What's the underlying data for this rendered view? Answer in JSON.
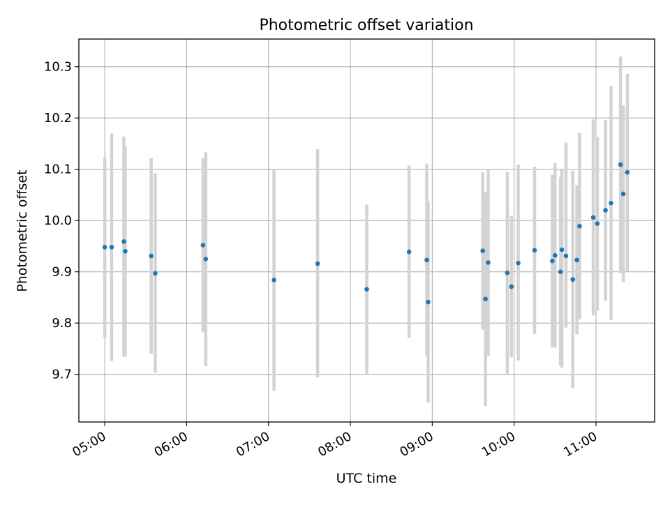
{
  "chart_data": {
    "type": "scatter",
    "title": "Photometric offset variation",
    "xlabel": "UTC time",
    "ylabel": "Photometric offset",
    "x_ticks": [
      "05:00",
      "06:00",
      "07:00",
      "08:00",
      "09:00",
      "10:00",
      "11:00"
    ],
    "y_ticks": [
      "9.7",
      "9.8",
      "9.9",
      "10.0",
      "10.1",
      "10.2",
      "10.3"
    ],
    "xlim": [
      "04:41",
      "11:43"
    ],
    "ylim": [
      9.607,
      10.354
    ],
    "grid": true,
    "marker_color": "#1f77b4",
    "errorbar_color": "#d3d3d3",
    "points": [
      {
        "t": "05:00",
        "y": 9.948,
        "lo": 9.772,
        "hi": 10.124
      },
      {
        "t": "05:05",
        "y": 9.948,
        "lo": 9.726,
        "hi": 10.17
      },
      {
        "t": "05:14",
        "y": 9.959,
        "lo": 9.734,
        "hi": 10.164
      },
      {
        "t": "05:15",
        "y": 9.94,
        "lo": 9.734,
        "hi": 10.145
      },
      {
        "t": "05:34",
        "y": 9.931,
        "lo": 9.74,
        "hi": 10.122
      },
      {
        "t": "05:37",
        "y": 9.897,
        "lo": 9.703,
        "hi": 10.092
      },
      {
        "t": "06:12",
        "y": 9.952,
        "lo": 9.782,
        "hi": 10.122
      },
      {
        "t": "06:14",
        "y": 9.925,
        "lo": 9.716,
        "hi": 10.134
      },
      {
        "t": "07:04",
        "y": 9.884,
        "lo": 9.668,
        "hi": 10.1
      },
      {
        "t": "07:36",
        "y": 9.916,
        "lo": 9.694,
        "hi": 10.139
      },
      {
        "t": "08:12",
        "y": 9.866,
        "lo": 9.7,
        "hi": 10.031
      },
      {
        "t": "08:43",
        "y": 9.939,
        "lo": 9.771,
        "hi": 10.107
      },
      {
        "t": "08:56",
        "y": 9.923,
        "lo": 9.735,
        "hi": 10.111
      },
      {
        "t": "08:57",
        "y": 9.841,
        "lo": 9.645,
        "hi": 10.038
      },
      {
        "t": "09:37",
        "y": 9.941,
        "lo": 9.787,
        "hi": 10.095
      },
      {
        "t": "09:39",
        "y": 9.847,
        "lo": 9.638,
        "hi": 10.055
      },
      {
        "t": "09:41",
        "y": 9.918,
        "lo": 9.736,
        "hi": 10.101
      },
      {
        "t": "09:55",
        "y": 9.898,
        "lo": 9.7,
        "hi": 10.095
      },
      {
        "t": "09:58",
        "y": 9.871,
        "lo": 9.733,
        "hi": 10.009
      },
      {
        "t": "10:03",
        "y": 9.917,
        "lo": 9.727,
        "hi": 10.109
      },
      {
        "t": "10:15",
        "y": 9.942,
        "lo": 9.779,
        "hi": 10.105
      },
      {
        "t": "10:28",
        "y": 9.921,
        "lo": 9.752,
        "hi": 10.089
      },
      {
        "t": "10:30",
        "y": 9.932,
        "lo": 9.752,
        "hi": 10.112
      },
      {
        "t": "10:34",
        "y": 9.9,
        "lo": 9.717,
        "hi": 10.085
      },
      {
        "t": "10:35",
        "y": 9.943,
        "lo": 9.713,
        "hi": 10.1
      },
      {
        "t": "10:38",
        "y": 9.931,
        "lo": 9.791,
        "hi": 10.152
      },
      {
        "t": "10:43",
        "y": 9.885,
        "lo": 9.673,
        "hi": 10.097
      },
      {
        "t": "10:46",
        "y": 9.923,
        "lo": 9.778,
        "hi": 10.069
      },
      {
        "t": "10:48",
        "y": 9.989,
        "lo": 9.807,
        "hi": 10.171
      },
      {
        "t": "10:58",
        "y": 10.006,
        "lo": 9.815,
        "hi": 10.197
      },
      {
        "t": "11:01",
        "y": 9.994,
        "lo": 9.824,
        "hi": 10.163
      },
      {
        "t": "11:07",
        "y": 10.02,
        "lo": 9.844,
        "hi": 10.196
      },
      {
        "t": "11:11",
        "y": 10.034,
        "lo": 9.806,
        "hi": 10.262
      },
      {
        "t": "11:18",
        "y": 10.109,
        "lo": 9.897,
        "hi": 10.32
      },
      {
        "t": "11:20",
        "y": 10.052,
        "lo": 9.88,
        "hi": 10.224
      },
      {
        "t": "11:23",
        "y": 10.094,
        "lo": 9.901,
        "hi": 10.286
      }
    ]
  }
}
